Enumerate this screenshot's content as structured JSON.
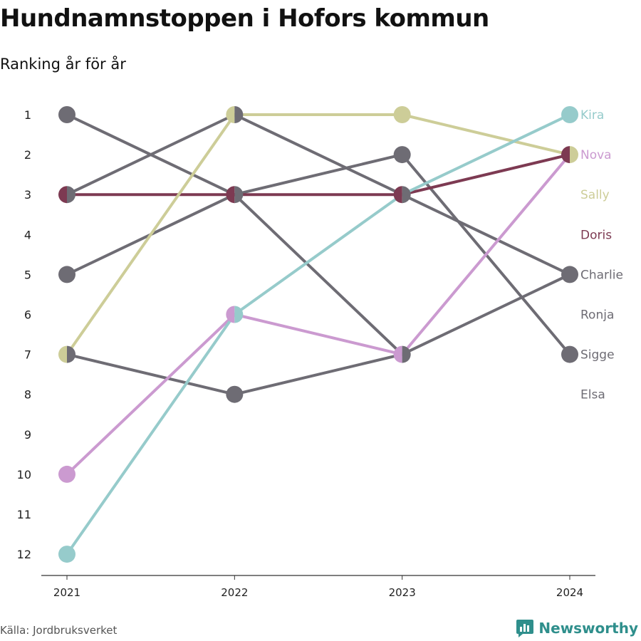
{
  "title": "Hundnamnstoppen i Hofors kommun",
  "subtitle": "Ranking år för år",
  "source": "Källa: Jordbruksverket",
  "brand": "Newsworthy",
  "colors": {
    "gray": "#6e6c74",
    "axis": "#333333",
    "brand": "#2f8f8c"
  },
  "chart_data": {
    "type": "line",
    "subtype": "bump",
    "title": "Hundnamnstoppen i Hofors kommun",
    "subtitle": "Ranking år för år",
    "x": [
      "2021",
      "2022",
      "2023",
      "2024"
    ],
    "y_ticks": [
      1,
      2,
      3,
      4,
      5,
      6,
      7,
      8,
      9,
      10,
      11,
      12
    ],
    "ylim": [
      1,
      12
    ],
    "y_reversed": true,
    "grid": false,
    "legend": "direct labels at right end of lines",
    "series": [
      {
        "name": "Ronja",
        "color": "#6e6c74",
        "values": [
          1,
          3,
          7,
          null
        ]
      },
      {
        "name": "Elsa",
        "color": "#6e6c74",
        "values": [
          5,
          3,
          2,
          7
        ]
      },
      {
        "name": "Sigge",
        "color": "#6e6c74",
        "values": [
          7,
          8,
          7,
          5
        ]
      },
      {
        "name": "Charlie",
        "color": "#6e6c74",
        "values": [
          3,
          1,
          3,
          5
        ]
      },
      {
        "name": "Doris",
        "color": "#7d3a52",
        "values": [
          3,
          3,
          3,
          2
        ]
      },
      {
        "name": "Sally",
        "color": "#cdcd98",
        "values": [
          7,
          1,
          1,
          2
        ]
      },
      {
        "name": "Nova",
        "color": "#cb9ad0",
        "values": [
          10,
          6,
          7,
          2
        ]
      },
      {
        "name": "Kira",
        "color": "#96cbcb",
        "values": [
          12,
          6,
          3,
          1
        ]
      }
    ],
    "end_labels": [
      {
        "name": "Kira",
        "rank": 1,
        "color": "#96cbcb"
      },
      {
        "name": "Nova",
        "rank": 2,
        "color": "#cb9ad0"
      },
      {
        "name": "Sally",
        "rank": 3,
        "color": "#cdcd98"
      },
      {
        "name": "Doris",
        "rank": 4,
        "color": "#7d3a52"
      },
      {
        "name": "Charlie",
        "rank": 5,
        "color": "#6e6c74"
      },
      {
        "name": "Ronja",
        "rank": 6,
        "color": "#6e6c74"
      },
      {
        "name": "Sigge",
        "rank": 7,
        "color": "#6e6c74"
      },
      {
        "name": "Elsa",
        "rank": 8,
        "color": "#6e6c74"
      }
    ]
  }
}
